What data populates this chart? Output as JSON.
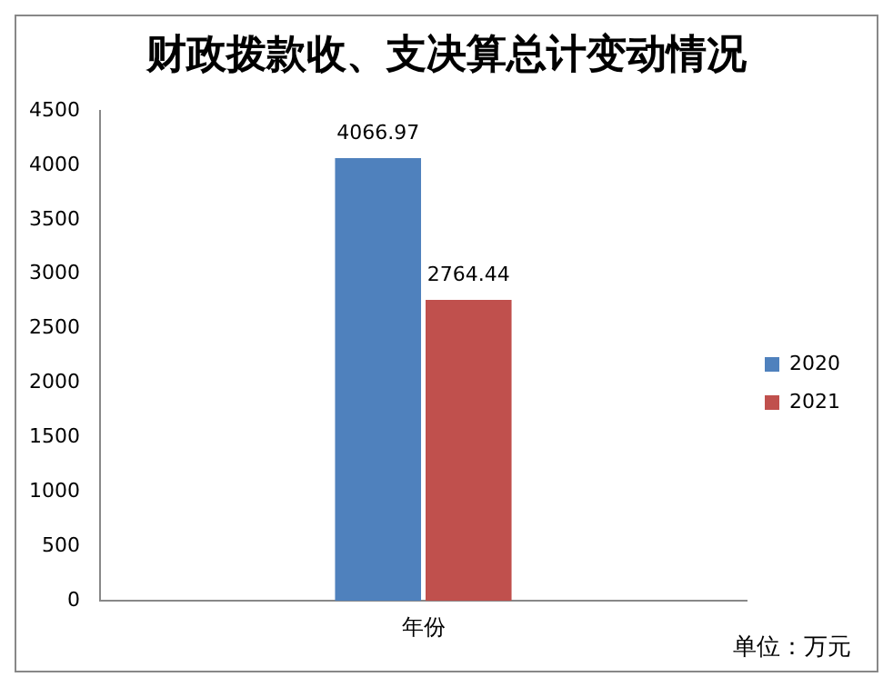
{
  "chart_data": {
    "type": "bar",
    "title": "财政拨款收、支决算总计变动情况",
    "categories": [
      "年份"
    ],
    "series": [
      {
        "name": "2020",
        "color": "#4f81bd",
        "values": [
          4066.97
        ]
      },
      {
        "name": "2021",
        "color": "#c0504d",
        "values": [
          2764.44
        ]
      }
    ],
    "ylim": [
      0,
      4500
    ],
    "yticks": [
      0,
      500,
      1000,
      1500,
      2000,
      2500,
      3000,
      3500,
      4000,
      4500
    ],
    "grid": false,
    "legend": "right",
    "data_labels": true,
    "annotations": [
      "单位：万元"
    ]
  }
}
